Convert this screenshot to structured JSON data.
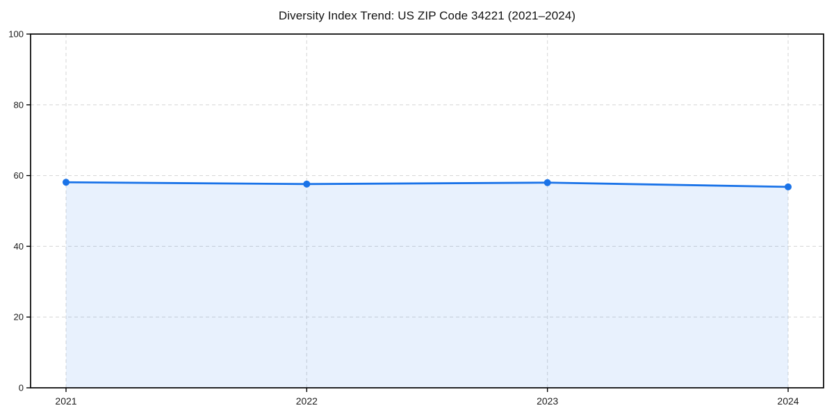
{
  "chart_data": {
    "type": "line",
    "title": "Diversity Index Trend: US ZIP Code 34221 (2021–2024)",
    "x": [
      "2021",
      "2022",
      "2023",
      "2024"
    ],
    "series": [
      {
        "name": "Diversity Index",
        "values": [
          58.1,
          57.6,
          58.0,
          56.8
        ]
      }
    ],
    "xlabel": "",
    "ylabel": "",
    "ylim": [
      0,
      100
    ],
    "yticks": [
      0,
      20,
      40,
      60,
      80,
      100
    ],
    "grid": true,
    "grid_style": "dashed",
    "legend": "none",
    "area_fill": true,
    "colors": {
      "line": "#1a73e8",
      "marker": "#1a73e8",
      "area": "#1a73e8",
      "area_opacity": 0.1,
      "grid": "#d9d9d9",
      "axis": "#000000",
      "text": "#1a1a1a",
      "background": "#ffffff"
    }
  }
}
